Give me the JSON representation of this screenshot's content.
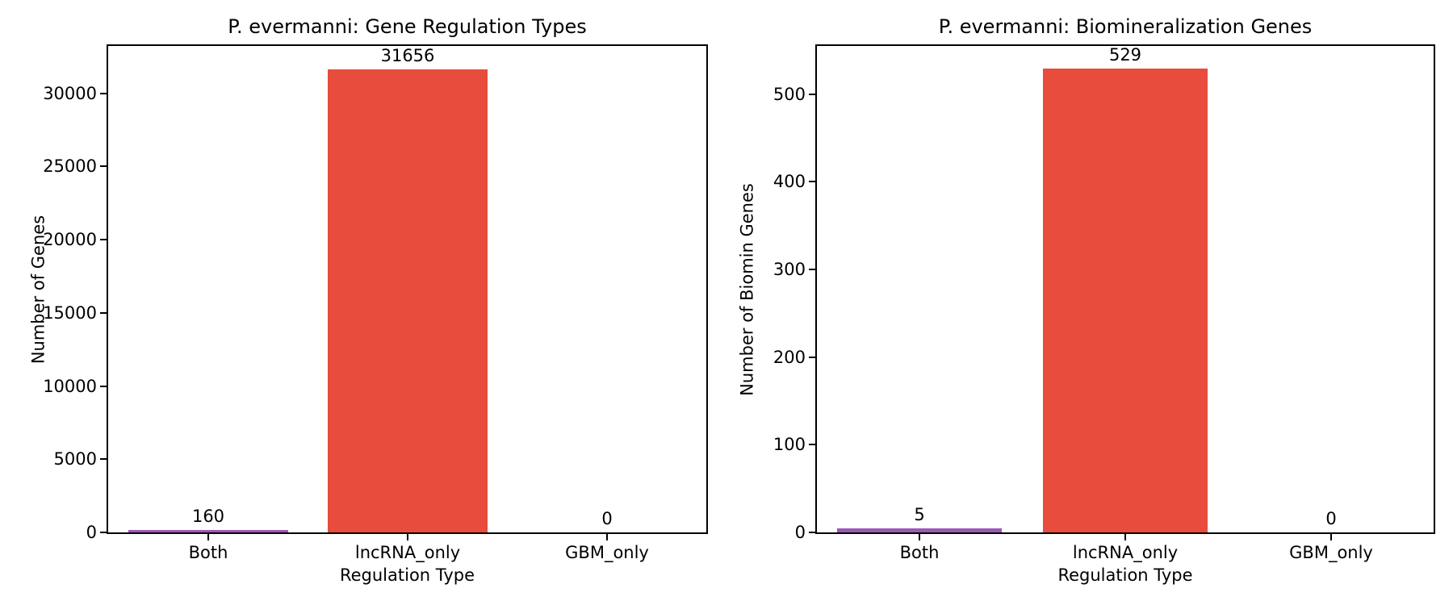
{
  "figure": {
    "background": "#ffffff",
    "text_color": "#000000",
    "spine_color": "#000000"
  },
  "colors": {
    "bar_purple": "#9b59b6",
    "bar_red": "#e74c3c"
  },
  "chart_data": [
    {
      "type": "bar",
      "title": "P. evermanni: Gene Regulation Types",
      "xlabel": "Regulation Type",
      "ylabel": "Number of Genes",
      "categories": [
        "Both",
        "lncRNA_only",
        "GBM_only"
      ],
      "values": [
        160,
        31656,
        0
      ],
      "value_labels": [
        "160",
        "31656",
        "0"
      ],
      "bar_colors": [
        "#9b59b6",
        "#e74c3c",
        "#e74c3c"
      ],
      "yticks": [
        0,
        5000,
        10000,
        15000,
        20000,
        25000,
        30000
      ],
      "ytick_labels": [
        "0",
        "5000",
        "10000",
        "15000",
        "20000",
        "25000",
        "30000"
      ],
      "ylim": [
        0,
        33239
      ],
      "grid": false,
      "legend": null
    },
    {
      "type": "bar",
      "title": "P. evermanni: Biomineralization Genes",
      "xlabel": "Regulation Type",
      "ylabel": "Number of Biomin Genes",
      "categories": [
        "Both",
        "lncRNA_only",
        "GBM_only"
      ],
      "values": [
        5,
        529,
        0
      ],
      "value_labels": [
        "5",
        "529",
        "0"
      ],
      "bar_colors": [
        "#9b59b6",
        "#e74c3c",
        "#e74c3c"
      ],
      "yticks": [
        0,
        100,
        200,
        300,
        400,
        500
      ],
      "ytick_labels": [
        "0",
        "100",
        "200",
        "300",
        "400",
        "500"
      ],
      "ylim": [
        0,
        555
      ],
      "grid": false,
      "legend": null
    }
  ]
}
